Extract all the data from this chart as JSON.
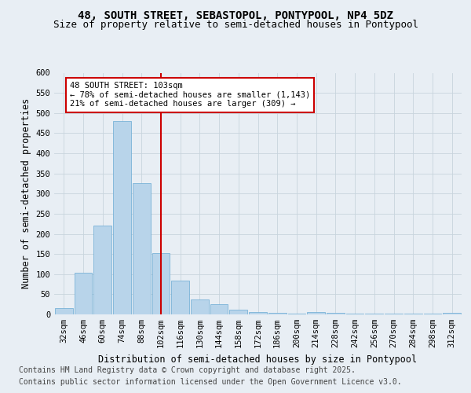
{
  "title": "48, SOUTH STREET, SEBASTOPOL, PONTYPOOL, NP4 5DZ",
  "subtitle": "Size of property relative to semi-detached houses in Pontypool",
  "xlabel": "Distribution of semi-detached houses by size in Pontypool",
  "ylabel": "Number of semi-detached properties",
  "categories": [
    "32sqm",
    "46sqm",
    "60sqm",
    "74sqm",
    "88sqm",
    "102sqm",
    "116sqm",
    "130sqm",
    "144sqm",
    "158sqm",
    "172sqm",
    "186sqm",
    "200sqm",
    "214sqm",
    "228sqm",
    "242sqm",
    "256sqm",
    "270sqm",
    "284sqm",
    "298sqm",
    "312sqm"
  ],
  "values": [
    15,
    103,
    220,
    480,
    325,
    152,
    84,
    37,
    25,
    11,
    6,
    4,
    2,
    5,
    4,
    2,
    2,
    1,
    1,
    1,
    3
  ],
  "bar_color": "#b8d4ea",
  "bar_edge_color": "#7aaSd4",
  "vline_color": "#cc0000",
  "annotation_line1": "48 SOUTH STREET: 103sqm",
  "annotation_line2": "← 78% of semi-detached houses are smaller (1,143)",
  "annotation_line3": "21% of semi-detached houses are larger (309) →",
  "annotation_box_color": "#cc0000",
  "ylim": [
    0,
    600
  ],
  "yticks": [
    0,
    50,
    100,
    150,
    200,
    250,
    300,
    350,
    400,
    450,
    500,
    550,
    600
  ],
  "footer_line1": "Contains HM Land Registry data © Crown copyright and database right 2025.",
  "footer_line2": "Contains public sector information licensed under the Open Government Licence v3.0.",
  "bg_color": "#e8eef4",
  "plot_bg_color": "#e8eef4",
  "title_fontsize": 10,
  "subtitle_fontsize": 9,
  "axis_label_fontsize": 8.5,
  "tick_fontsize": 7.5,
  "footer_fontsize": 7
}
